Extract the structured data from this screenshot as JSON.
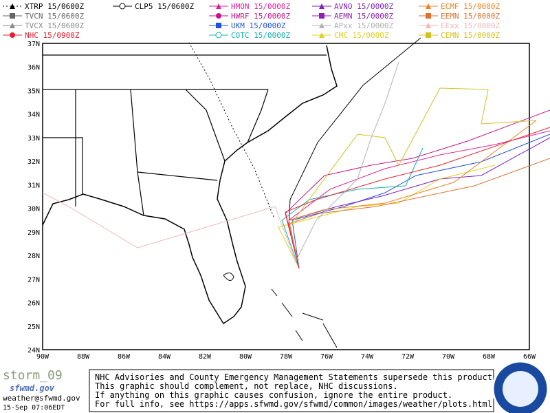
{
  "legend": [
    {
      "label": "XTRP 15/0600Z",
      "color": "#000000"
    },
    {
      "label": "TVCN 15/0600Z",
      "color": "#666666"
    },
    {
      "label": "TVCX 15/0600Z",
      "color": "#888888"
    },
    {
      "label": "NHC 15/0900Z",
      "color": "#e8202a"
    },
    {
      "label": "CLP5 15/0600Z",
      "color": "#000000"
    },
    {
      "label": "HMON 15/0000Z",
      "color": "#e0209a"
    },
    {
      "label": "HWRF 15/0000Z",
      "color": "#c8148c"
    },
    {
      "label": "UKM 15/0000Z",
      "color": "#2050e0"
    },
    {
      "label": "COTC 15/0000Z",
      "color": "#10b0b0"
    },
    {
      "label": "AVNO 15/0000Z",
      "color": "#8020c0"
    },
    {
      "label": "AEMN 15/0000Z",
      "color": "#9020b0"
    },
    {
      "label": "APxx 15/0000Z",
      "color": "#b0b0b0"
    },
    {
      "label": "CMC 15/0000Z",
      "color": "#e0d020"
    },
    {
      "label": "ECMF 15/0000Z",
      "color": "#f08020"
    },
    {
      "label": "EEMN 15/0000Z",
      "color": "#e07030"
    },
    {
      "label": "EExx 15/0000Z",
      "color": "#f0b8b8"
    },
    {
      "label": "CEMN 15/0000Z",
      "color": "#d8c020"
    }
  ],
  "axes": {
    "lon_labels": [
      "90W",
      "88W",
      "86W",
      "84W",
      "82W",
      "80W",
      "78W",
      "76W",
      "74W",
      "72W",
      "70W",
      "68W",
      "66W"
    ],
    "lat_labels": [
      "37N",
      "36N",
      "35N",
      "34N",
      "33N",
      "32N",
      "31N",
      "30N",
      "29N",
      "28N",
      "27N",
      "26N",
      "25N",
      "24N"
    ]
  },
  "footer": {
    "storm": "storm_09",
    "logo": "sfwmd.gov",
    "email": "weather@sfwmd.gov",
    "date": "15-Sep 07:06EDT",
    "notice": [
      "NHC Advisories and County Emergency Management Statements supersede this product.",
      "This graphic should complement, not replace, NHC discussions.",
      "If anything on this graphic causes confusion, ignore the entire product.",
      "For full info, see  https://apps.sfwmd.gov/sfwmd/common/images/weather/plots.html"
    ]
  }
}
